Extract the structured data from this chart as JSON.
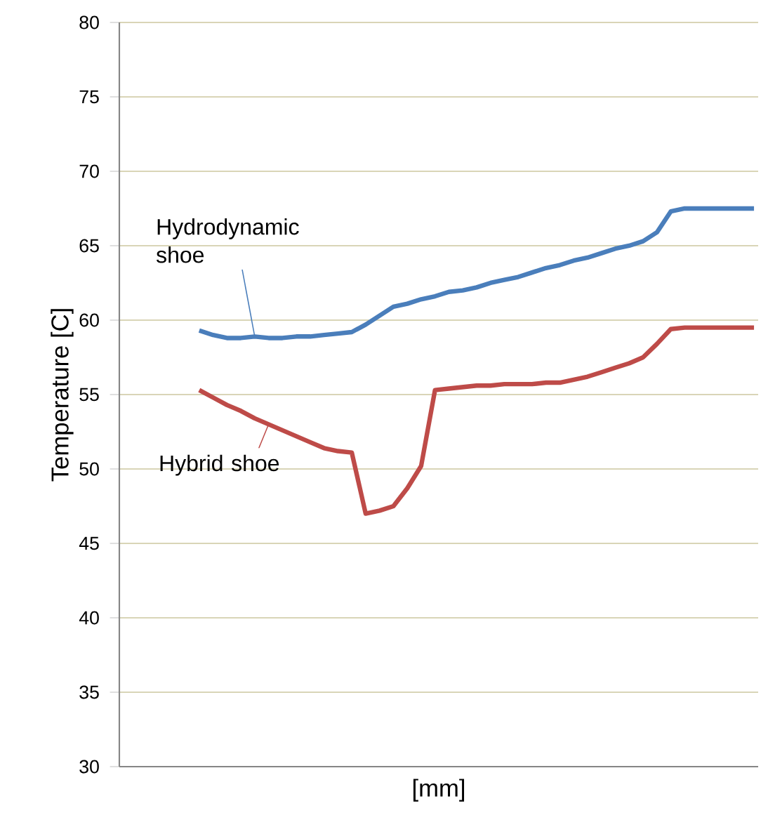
{
  "chart_data": {
    "type": "line",
    "xlabel": "[mm]",
    "ylabel": "Temperature [C]",
    "categories": [
      null,
      null,
      null,
      null,
      null,
      null,
      null,
      null,
      null,
      null,
      null,
      null,
      null,
      null,
      null,
      null,
      null,
      null,
      null,
      null,
      null,
      null,
      null,
      null,
      null,
      null,
      null,
      null,
      null,
      null,
      null,
      null,
      null,
      null,
      null,
      null,
      null,
      null,
      null,
      null,
      null
    ],
    "series": [
      {
        "name": "Hydrodynamic shoe",
        "color": "#4a7ebb",
        "values": [
          59.3,
          59.0,
          58.8,
          58.8,
          58.9,
          58.8,
          58.8,
          58.9,
          58.9,
          59.0,
          59.1,
          59.2,
          59.7,
          60.3,
          60.9,
          61.1,
          61.4,
          61.6,
          61.9,
          62.0,
          62.2,
          62.5,
          62.7,
          62.9,
          63.2,
          63.5,
          63.7,
          64.0,
          64.2,
          64.5,
          64.8,
          65.0,
          65.3,
          65.9,
          67.3,
          67.5,
          67.5,
          67.5,
          67.5,
          67.5,
          67.5
        ]
      },
      {
        "name": "Hybrid shoe",
        "color": "#be4b48",
        "values": [
          55.3,
          54.8,
          54.3,
          53.9,
          53.4,
          53.0,
          52.6,
          52.2,
          51.8,
          51.4,
          51.2,
          51.1,
          47.0,
          47.2,
          47.5,
          48.7,
          50.2,
          55.3,
          55.4,
          55.5,
          55.6,
          55.6,
          55.7,
          55.7,
          55.7,
          55.8,
          55.8,
          56.0,
          56.2,
          56.5,
          56.8,
          57.1,
          57.5,
          58.4,
          59.4,
          59.5,
          59.5,
          59.5,
          59.5,
          59.5,
          59.5
        ]
      }
    ],
    "ylim": [
      30,
      80
    ],
    "yticks": [
      30,
      35,
      40,
      45,
      50,
      55,
      60,
      65,
      70,
      75,
      80
    ],
    "grid": "y",
    "marker": "none",
    "line_style": "solid"
  }
}
